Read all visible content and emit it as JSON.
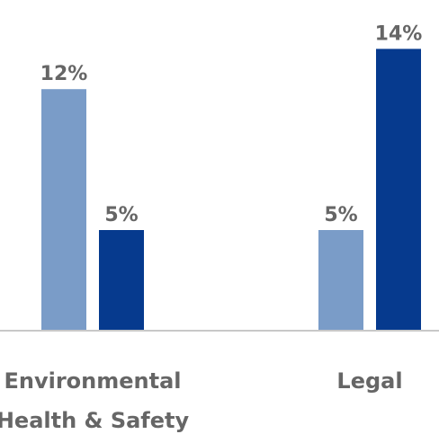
{
  "chart_data": {
    "type": "bar",
    "categories": [
      [
        "Environmental",
        "Health & Safety"
      ],
      [
        "Legal"
      ]
    ],
    "series": [
      {
        "values": [
          12,
          5
        ],
        "color": "#7A9CC8"
      },
      {
        "values": [
          5,
          14
        ],
        "color": "#063A8E"
      }
    ],
    "value_suffix": "%",
    "ylim": [
      0,
      14
    ],
    "grid": false,
    "legend": "none",
    "title": "",
    "xlabel": "",
    "ylabel": ""
  }
}
